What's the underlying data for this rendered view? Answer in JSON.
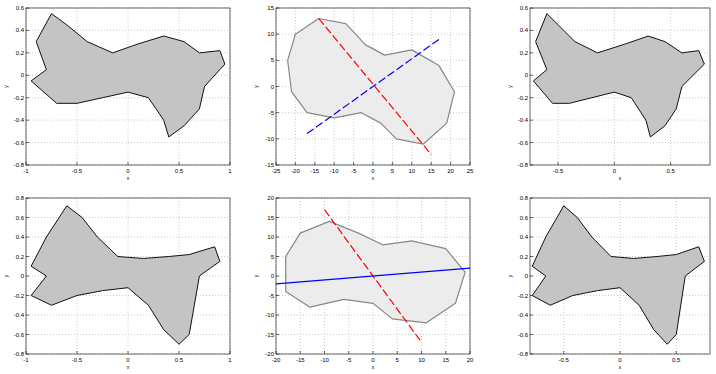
{
  "chart_data": [
    {
      "type": "line",
      "x_label": "x",
      "y_label": "y",
      "grid": true,
      "xlim": [
        -1,
        1
      ],
      "xticks": [
        -1,
        -0.5,
        0,
        0.5,
        1
      ],
      "ylim": [
        -0.8,
        0.6
      ],
      "yticks": [
        -0.8,
        -0.6,
        -0.4,
        -0.2,
        0,
        0.2,
        0.4,
        0.6
      ],
      "series": [
        {
          "type": "area",
          "color": "#c4c4c4",
          "x": [
            -0.75,
            -0.6,
            -0.4,
            -0.15,
            0.1,
            0.35,
            0.55,
            0.7,
            0.9,
            0.95,
            0.75,
            0.7,
            0.55,
            0.4,
            0.35,
            0.2,
            0,
            -0.25,
            -0.5,
            -0.7,
            -0.95,
            -0.8,
            -0.9
          ],
          "values": [
            0.55,
            0.45,
            0.3,
            0.2,
            0.28,
            0.35,
            0.3,
            0.2,
            0.22,
            0.1,
            -0.1,
            -0.3,
            -0.45,
            -0.55,
            -0.4,
            -0.2,
            -0.15,
            -0.2,
            -0.25,
            -0.25,
            -0.05,
            0.05,
            0.3
          ]
        }
      ]
    },
    {
      "type": "line",
      "x_label": "x",
      "y_label": "y",
      "grid": true,
      "xlim": [
        -25,
        25
      ],
      "xticks": [
        -25,
        -20,
        -15,
        -10,
        -5,
        0,
        5,
        10,
        15,
        20,
        25
      ],
      "ylim": [
        -15,
        15
      ],
      "yticks": [
        -15,
        -10,
        -5,
        0,
        5,
        10,
        15
      ],
      "series": [
        {
          "type": "area",
          "color": "#ececec",
          "x": [
            -22,
            -20,
            -14,
            -7,
            -2,
            3,
            10,
            17,
            21,
            19,
            13,
            6,
            2,
            -3,
            -10,
            -17,
            -21
          ],
          "values": [
            5,
            10,
            13,
            12,
            8,
            6,
            7,
            4,
            -1,
            -7,
            -11,
            -10,
            -7,
            -5,
            -6,
            -5,
            -1
          ]
        },
        {
          "type": "line",
          "color": "#ff0000",
          "line_style": "dashed",
          "x": [
            -14,
            15
          ],
          "values": [
            13,
            -13
          ]
        },
        {
          "type": "line",
          "color": "#0000ff",
          "line_style": "dashed",
          "x": [
            -17,
            17
          ],
          "values": [
            -9,
            9
          ]
        }
      ]
    },
    {
      "type": "line",
      "x_label": "x",
      "y_label": "y",
      "grid": true,
      "xlim": [
        -0.75,
        0.85
      ],
      "xticks": [
        -0.5,
        0,
        0.5
      ],
      "ylim": [
        -0.8,
        0.6
      ],
      "yticks": [
        -0.8,
        -0.6,
        -0.4,
        -0.2,
        0,
        0.2,
        0.4,
        0.6
      ],
      "series": [
        {
          "type": "area",
          "color": "#c4c4c4",
          "x": [
            -0.6,
            -0.5,
            -0.35,
            -0.15,
            0.1,
            0.3,
            0.45,
            0.6,
            0.75,
            0.8,
            0.6,
            0.55,
            0.45,
            0.32,
            0.28,
            0.15,
            0,
            -0.2,
            -0.4,
            -0.55,
            -0.72,
            -0.6,
            -0.7
          ],
          "values": [
            0.55,
            0.45,
            0.3,
            0.2,
            0.28,
            0.35,
            0.3,
            0.2,
            0.22,
            0.1,
            -0.1,
            -0.3,
            -0.45,
            -0.55,
            -0.4,
            -0.2,
            -0.15,
            -0.2,
            -0.25,
            -0.25,
            -0.05,
            0.05,
            0.3
          ]
        }
      ]
    },
    {
      "type": "line",
      "x_label": "x",
      "y_label": "y",
      "grid": true,
      "xlim": [
        -1,
        1
      ],
      "xticks": [
        -1,
        -0.5,
        0,
        0.5,
        1
      ],
      "ylim": [
        -0.8,
        0.8
      ],
      "yticks": [
        -0.8,
        -0.6,
        -0.4,
        -0.2,
        0,
        0.2,
        0.4,
        0.6,
        0.8
      ],
      "series": [
        {
          "type": "area",
          "color": "#c4c4c4",
          "x": [
            -0.6,
            -0.45,
            -0.3,
            -0.1,
            0.15,
            0.4,
            0.6,
            0.85,
            0.9,
            0.7,
            0.65,
            0.6,
            0.5,
            0.35,
            0.2,
            0.0,
            -0.25,
            -0.5,
            -0.75,
            -0.95,
            -0.8,
            -0.95,
            -0.8
          ],
          "values": [
            0.72,
            0.6,
            0.4,
            0.2,
            0.18,
            0.2,
            0.22,
            0.3,
            0.15,
            0.0,
            -0.3,
            -0.6,
            -0.7,
            -0.55,
            -0.3,
            -0.12,
            -0.15,
            -0.2,
            -0.3,
            -0.2,
            0.0,
            0.1,
            0.4
          ]
        }
      ]
    },
    {
      "type": "line",
      "x_label": "x",
      "y_label": "y",
      "grid": true,
      "xlim": [
        -20,
        20
      ],
      "xticks": [
        -20,
        -15,
        -10,
        -5,
        0,
        5,
        10,
        15,
        20
      ],
      "ylim": [
        -20,
        20
      ],
      "yticks": [
        -20,
        -15,
        -10,
        -5,
        0,
        5,
        10,
        15,
        20
      ],
      "series": [
        {
          "type": "area",
          "color": "#ececec",
          "x": [
            -18,
            -15,
            -9,
            -3,
            2,
            8,
            15,
            19,
            17,
            11,
            4,
            0,
            -6,
            -13,
            -18
          ],
          "values": [
            5,
            11,
            14,
            11,
            8,
            9,
            7,
            1,
            -7,
            -12,
            -11,
            -7,
            -6,
            -8,
            -4
          ]
        },
        {
          "type": "line",
          "color": "#ff0000",
          "line_style": "dashed",
          "x": [
            -10,
            10
          ],
          "values": [
            17,
            -17
          ]
        },
        {
          "type": "line",
          "color": "#0000ff",
          "line_style": "solid",
          "x": [
            -20,
            20
          ],
          "values": [
            -2,
            2
          ]
        }
      ]
    },
    {
      "type": "line",
      "x_label": "x",
      "y_label": "y",
      "grid": true,
      "xlim": [
        -0.8,
        0.8
      ],
      "xticks": [
        -0.5,
        0,
        0.5
      ],
      "ylim": [
        -0.8,
        0.8
      ],
      "yticks": [
        -0.8,
        -0.6,
        -0.4,
        -0.2,
        0,
        0.2,
        0.4,
        0.6,
        0.8
      ],
      "series": [
        {
          "type": "area",
          "color": "#c4c4c4",
          "x": [
            -0.5,
            -0.38,
            -0.25,
            -0.08,
            0.12,
            0.33,
            0.5,
            0.7,
            0.75,
            0.58,
            0.54,
            0.5,
            0.42,
            0.3,
            0.17,
            0.0,
            -0.2,
            -0.42,
            -0.62,
            -0.78,
            -0.66,
            -0.78,
            -0.66
          ],
          "values": [
            0.72,
            0.6,
            0.4,
            0.2,
            0.18,
            0.2,
            0.22,
            0.3,
            0.15,
            0.0,
            -0.3,
            -0.6,
            -0.7,
            -0.55,
            -0.3,
            -0.12,
            -0.15,
            -0.2,
            -0.3,
            -0.2,
            0.0,
            0.1,
            0.4
          ]
        }
      ]
    }
  ]
}
